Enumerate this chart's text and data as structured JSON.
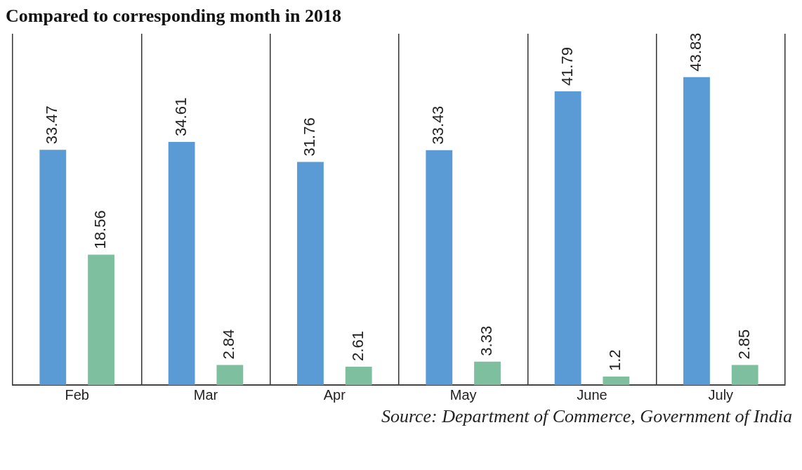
{
  "chart_data": {
    "type": "bar",
    "title": "Compared to corresponding month in 2018",
    "categories": [
      "Feb",
      "Mar",
      "Apr",
      "May",
      "June",
      "July"
    ],
    "series": [
      {
        "color": "#5b9bd5",
        "values": [
          33.47,
          34.61,
          31.76,
          33.43,
          41.79,
          43.83
        ]
      },
      {
        "color": "#7dbf9e",
        "values": [
          18.56,
          2.84,
          2.61,
          3.33,
          1.2,
          2.85
        ]
      }
    ],
    "ylim": [
      0,
      50
    ],
    "tick_labels": "x",
    "data_labels": true,
    "grid": "x",
    "legend": false,
    "annotations": [
      "Source: Department of Commerce, Government of India"
    ]
  }
}
